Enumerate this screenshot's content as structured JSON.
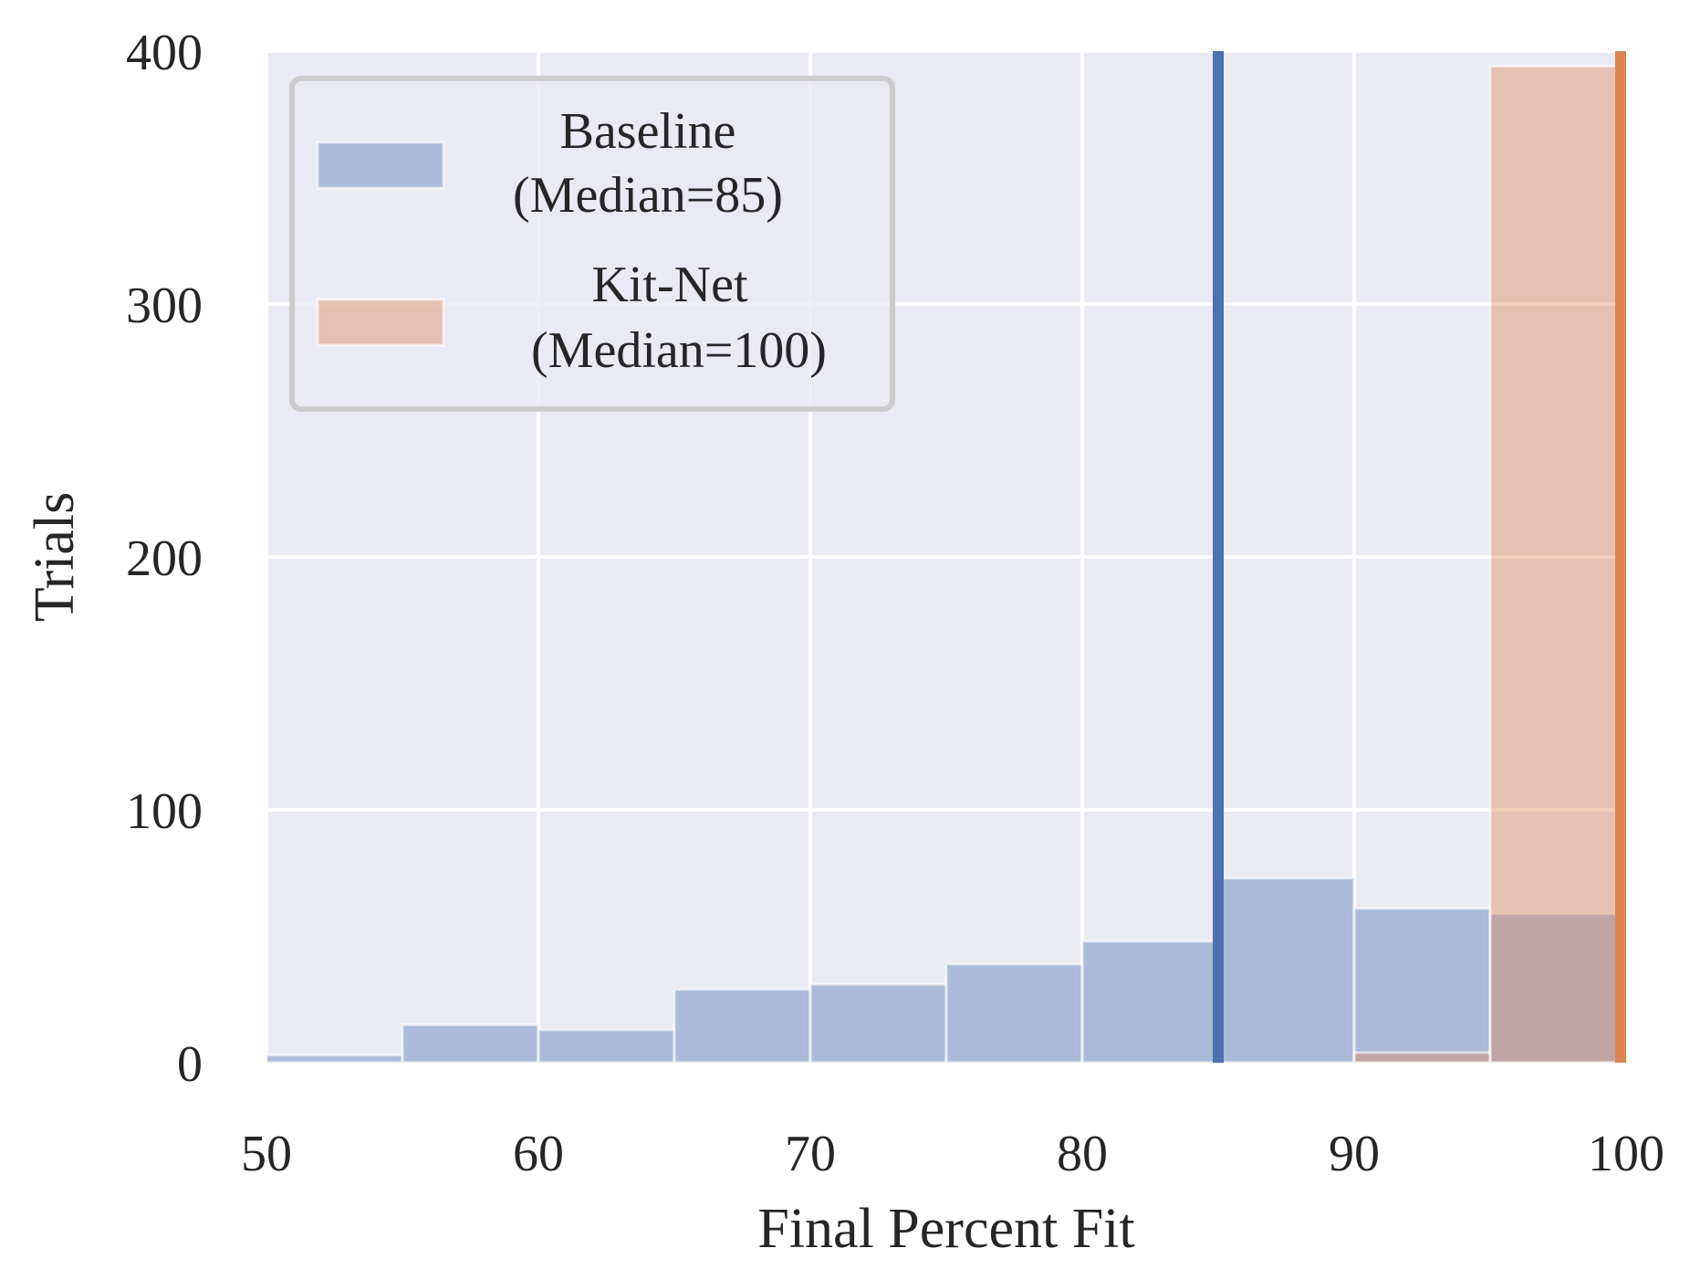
{
  "chart_data": {
    "type": "bar",
    "subtype": "histogram",
    "xlabel": "Final Percent Fit",
    "ylabel": "Trials",
    "xlim": [
      50,
      100
    ],
    "ylim": [
      0,
      400
    ],
    "xticks": [
      50,
      60,
      70,
      80,
      90,
      100
    ],
    "yticks": [
      0,
      100,
      200,
      300,
      400
    ],
    "grid": true,
    "legend_position": "top-left",
    "bin_edges": [
      50,
      55,
      60,
      65,
      70,
      75,
      80,
      85,
      90,
      95,
      100
    ],
    "series": [
      {
        "name": "Baseline",
        "legend_line2": "(Median=85)",
        "color": "#4c72b0",
        "counts": [
          3,
          15,
          13,
          29,
          31,
          39,
          48,
          73,
          61,
          59
        ],
        "median": 85
      },
      {
        "name": "Kit-Net",
        "legend_line2": "(Median=100)",
        "color": "#dd8452",
        "counts": [
          0,
          0,
          0,
          0,
          0,
          0,
          0,
          0,
          4,
          394
        ],
        "median": 100
      }
    ],
    "colors": {
      "background": "#eaeaf2",
      "grid": "#ffffff",
      "text": "#262626"
    }
  }
}
